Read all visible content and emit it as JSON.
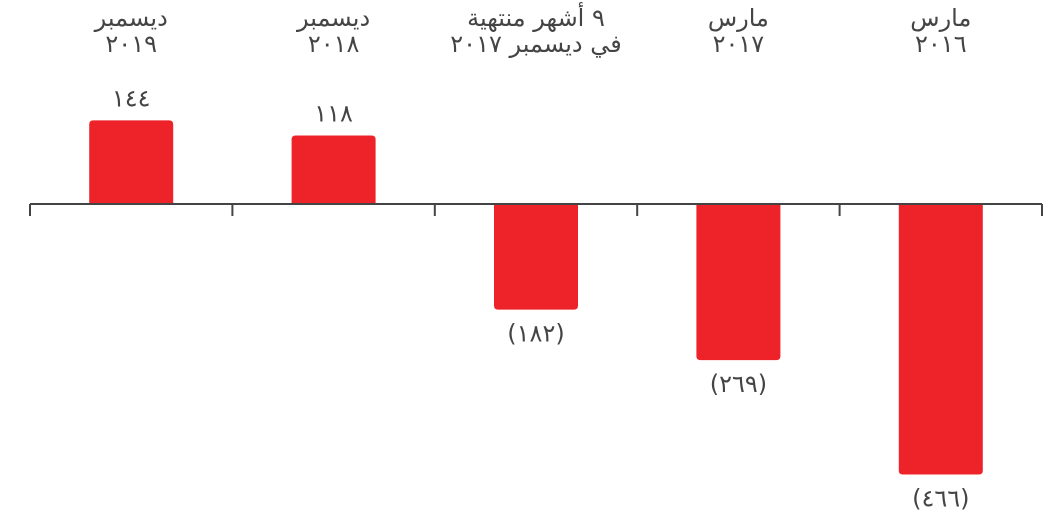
{
  "chart_data": {
    "type": "bar",
    "categories": [
      [
        "ديسمبر",
        "٢٠١٩"
      ],
      [
        "ديسمبر",
        "٢٠١٨"
      ],
      [
        "٩ أشهر منتهية",
        "في ديسمبر ٢٠١٧"
      ],
      [
        "مارس",
        "٢٠١٧"
      ],
      [
        "مارس",
        "٢٠١٦"
      ]
    ],
    "values": [
      144,
      118,
      -182,
      -269,
      -466
    ],
    "value_labels": [
      "١٤٤",
      "١١٨",
      "(١٨٢)",
      "(٢٦٩)",
      "(٤٦٦)"
    ],
    "title": "",
    "xlabel": "",
    "ylabel": "",
    "ylim": [
      -466,
      144
    ],
    "grid": false,
    "legend": "none",
    "colors": {
      "bar": "#ED2329",
      "axis": "#444444",
      "text": "#444444"
    }
  }
}
